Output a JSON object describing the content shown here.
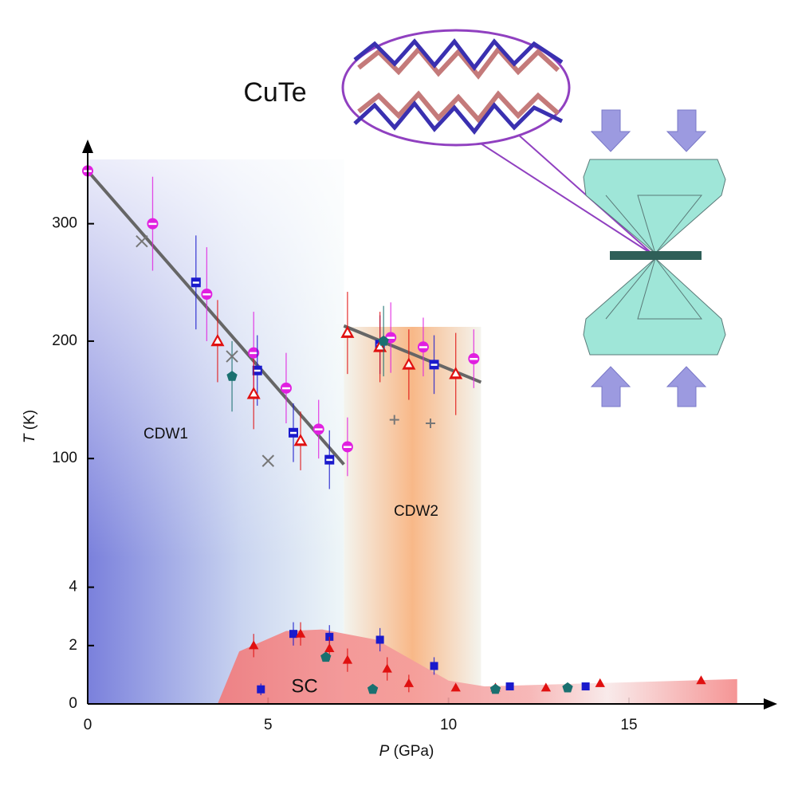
{
  "chart_data": {
    "type": "scatter",
    "compound": "CuTe",
    "xlabel": {
      "symbol": "P",
      "unit": "(GPa)"
    },
    "ylabel": {
      "symbol": "T",
      "unit": "(K)"
    },
    "region_labels": [
      "CDW1",
      "CDW2",
      "SC"
    ],
    "xlim": [
      0,
      19
    ],
    "xticks": [
      0,
      5,
      10,
      15
    ],
    "panels": [
      {
        "ylim": [
          75,
          350
        ],
        "yticks": [
          100,
          200,
          300
        ],
        "fits": [
          {
            "x": [
              0,
              7.1
            ],
            "values": [
              345,
              95
            ]
          },
          {
            "x": [
              7.1,
              10.9
            ],
            "values": [
              213,
              165
            ]
          }
        ],
        "series": [
          {
            "marker": "half-circle",
            "color": "#e020e0",
            "x": [
              0,
              1.8,
              3.3,
              4.6,
              5.5,
              6.4,
              7.2,
              8.4,
              9.3,
              10.7
            ],
            "values": [
              345,
              300,
              240,
              190,
              160,
              125,
              110,
              203,
              195,
              185
            ],
            "errors": [
              0,
              40,
              40,
              35,
              30,
              25,
              25,
              30,
              25,
              25
            ]
          },
          {
            "marker": "half-square",
            "color": "#1a1acc",
            "x": [
              3.0,
              4.7,
              5.7,
              6.7,
              8.1,
              9.6
            ],
            "values": [
              250,
              175,
              122,
              99,
              197,
              180
            ],
            "errors": [
              40,
              30,
              25,
              25,
              25,
              25
            ]
          },
          {
            "marker": "open-triangle",
            "color": "#e01010",
            "x": [
              3.6,
              4.6,
              5.9,
              7.2,
              8.1,
              8.9,
              10.2
            ],
            "values": [
              200,
              155,
              115,
              207,
              195,
              180,
              172
            ],
            "errors": [
              35,
              30,
              25,
              35,
              30,
              30,
              35
            ]
          },
          {
            "marker": "pentagon",
            "color": "#1a7070",
            "x": [
              4.0,
              8.2
            ],
            "values": [
              170,
              200
            ],
            "errors": [
              30,
              30
            ]
          },
          {
            "marker": "x",
            "color": "#777777",
            "x": [
              1.5,
              4.0,
              5.0
            ],
            "values": [
              285,
              187,
              98
            ]
          },
          {
            "marker": "plus",
            "color": "#777777",
            "x": [
              8.5,
              9.5
            ],
            "values": [
              133,
              130
            ]
          }
        ]
      },
      {
        "ylim": [
          0,
          5
        ],
        "yticks": [
          0,
          2,
          4
        ],
        "area": {
          "x": [
            3.6,
            4.2,
            5.5,
            6.5,
            8.0,
            9.0,
            10.0,
            11.0,
            18.0
          ],
          "values": [
            0,
            1.8,
            2.5,
            2.55,
            2.2,
            1.5,
            0.8,
            0.6,
            0.85
          ]
        },
        "series": [
          {
            "marker": "square",
            "color": "#1a1acc",
            "x": [
              4.8,
              5.7,
              6.7,
              8.1,
              9.6,
              11.7,
              13.8
            ],
            "values": [
              0.5,
              2.4,
              2.3,
              2.2,
              1.3,
              0.6,
              0.6
            ],
            "errors": [
              0.2,
              0.4,
              0.4,
              0.4,
              0.3,
              0.1,
              0.1
            ]
          },
          {
            "marker": "triangle",
            "color": "#e01010",
            "x": [
              4.6,
              5.9,
              6.7,
              7.2,
              8.3,
              8.9,
              10.2,
              11.3,
              12.7,
              14.2,
              17.0
            ],
            "values": [
              2.0,
              2.4,
              1.9,
              1.5,
              1.2,
              0.7,
              0.55,
              0.55,
              0.55,
              0.7,
              0.8
            ],
            "errors": [
              0.4,
              0.4,
              0.4,
              0.4,
              0.4,
              0.3,
              0.1,
              0.1,
              0.1,
              0.1,
              0.1
            ]
          },
          {
            "marker": "pentagon",
            "color": "#1a7070",
            "x": [
              6.6,
              7.9,
              11.3,
              13.3
            ],
            "values": [
              1.6,
              0.5,
              0.5,
              0.55
            ]
          }
        ]
      }
    ]
  }
}
